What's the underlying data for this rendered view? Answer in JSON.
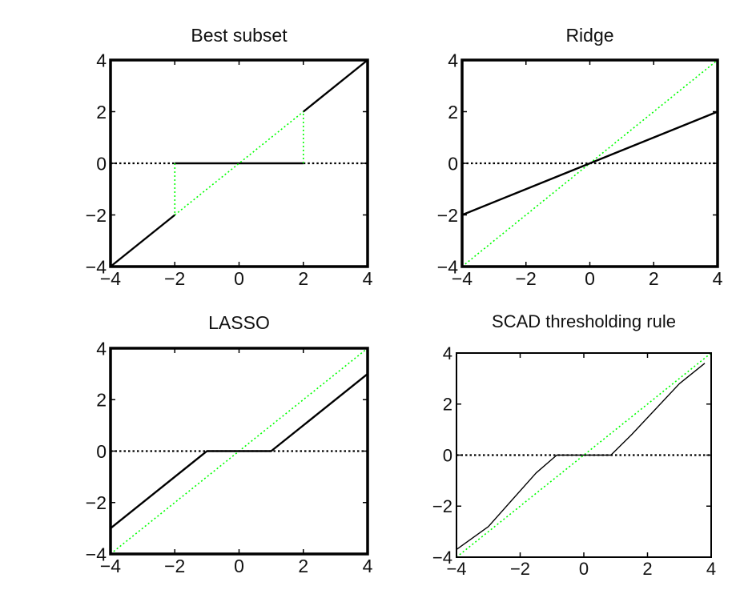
{
  "chart_data": [
    {
      "type": "line",
      "title": "Best subset",
      "xlabel": "",
      "ylabel": "",
      "xlim": [
        -4,
        4
      ],
      "ylim": [
        -4,
        4
      ],
      "xticks": [
        "−4",
        "−2",
        "0",
        "2",
        "4"
      ],
      "yticks": [
        "4",
        "2",
        "0",
        "−2",
        "−4"
      ],
      "grid": false,
      "series": [
        {
          "style": "solid",
          "color": "#000000",
          "x": [
            -4,
            -2
          ],
          "y": [
            -4,
            -2
          ]
        },
        {
          "style": "solid",
          "color": "#000000",
          "x": [
            -2,
            2
          ],
          "y": [
            0,
            0
          ]
        },
        {
          "style": "solid",
          "color": "#000000",
          "x": [
            2,
            4
          ],
          "y": [
            2,
            4
          ]
        },
        {
          "style": "dotted",
          "color": "#000000",
          "x": [
            -4,
            -2
          ],
          "y": [
            0,
            0
          ]
        },
        {
          "style": "dotted",
          "color": "#000000",
          "x": [
            2,
            4
          ],
          "y": [
            0,
            0
          ]
        },
        {
          "style": "dotted",
          "color": "#00ff00",
          "x": [
            -2,
            2
          ],
          "y": [
            -2,
            2
          ]
        },
        {
          "style": "dotted",
          "color": "#00ff00",
          "x": [
            -2,
            -2
          ],
          "y": [
            0,
            -2
          ]
        },
        {
          "style": "dotted",
          "color": "#00ff00",
          "x": [
            2,
            2
          ],
          "y": [
            0,
            2
          ]
        }
      ]
    },
    {
      "type": "line",
      "title": "Ridge",
      "xlabel": "",
      "ylabel": "",
      "xlim": [
        -4,
        4
      ],
      "ylim": [
        -4,
        4
      ],
      "xticks": [
        "−4",
        "−2",
        "0",
        "2",
        "4"
      ],
      "yticks": [
        "4",
        "2",
        "0",
        "−2",
        "−4"
      ],
      "grid": false,
      "series": [
        {
          "style": "dotted",
          "color": "#000000",
          "x": [
            -4,
            4
          ],
          "y": [
            0,
            0
          ]
        },
        {
          "style": "dotted",
          "color": "#00ff00",
          "x": [
            -4,
            4
          ],
          "y": [
            -4,
            4
          ]
        },
        {
          "style": "solid",
          "color": "#000000",
          "x": [
            -4,
            4
          ],
          "y": [
            -2,
            2
          ]
        }
      ]
    },
    {
      "type": "line",
      "title": "LASSO",
      "xlabel": "",
      "ylabel": "",
      "xlim": [
        -4,
        4
      ],
      "ylim": [
        -4,
        4
      ],
      "xticks": [
        "−4",
        "−2",
        "0",
        "2",
        "4"
      ],
      "yticks": [
        "4",
        "2",
        "0",
        "−2",
        "−4"
      ],
      "grid": false,
      "series": [
        {
          "style": "dotted",
          "color": "#000000",
          "x": [
            -4,
            4
          ],
          "y": [
            0,
            0
          ]
        },
        {
          "style": "dotted",
          "color": "#00ff00",
          "x": [
            -4,
            4
          ],
          "y": [
            -4,
            4
          ]
        },
        {
          "style": "solid",
          "color": "#000000",
          "x": [
            -4,
            -1,
            1,
            4
          ],
          "y": [
            -3,
            0,
            0,
            3
          ]
        }
      ]
    },
    {
      "type": "line",
      "title": "SCAD thresholding rule",
      "xlabel": "",
      "ylabel": "",
      "xlim": [
        -4,
        4
      ],
      "ylim": [
        -4,
        4
      ],
      "xticks": [
        "−4",
        "−2",
        "0",
        "2",
        "4"
      ],
      "yticks": [
        "4",
        "2",
        "0",
        "−2",
        "−4"
      ],
      "grid": false,
      "series": [
        {
          "style": "dotted",
          "color": "#000000",
          "x": [
            -4,
            4
          ],
          "y": [
            0,
            0
          ]
        },
        {
          "style": "dotted",
          "color": "#00ff00",
          "x": [
            -4,
            4
          ],
          "y": [
            -4,
            4
          ]
        },
        {
          "style": "solid",
          "color": "#000000",
          "x": [
            -4,
            -3,
            -1.5,
            -0.85,
            0.85,
            1.5,
            3,
            3.8
          ],
          "y": [
            -3.7,
            -2.8,
            -0.7,
            0,
            0,
            0.8,
            2.8,
            3.6
          ]
        }
      ]
    }
  ]
}
